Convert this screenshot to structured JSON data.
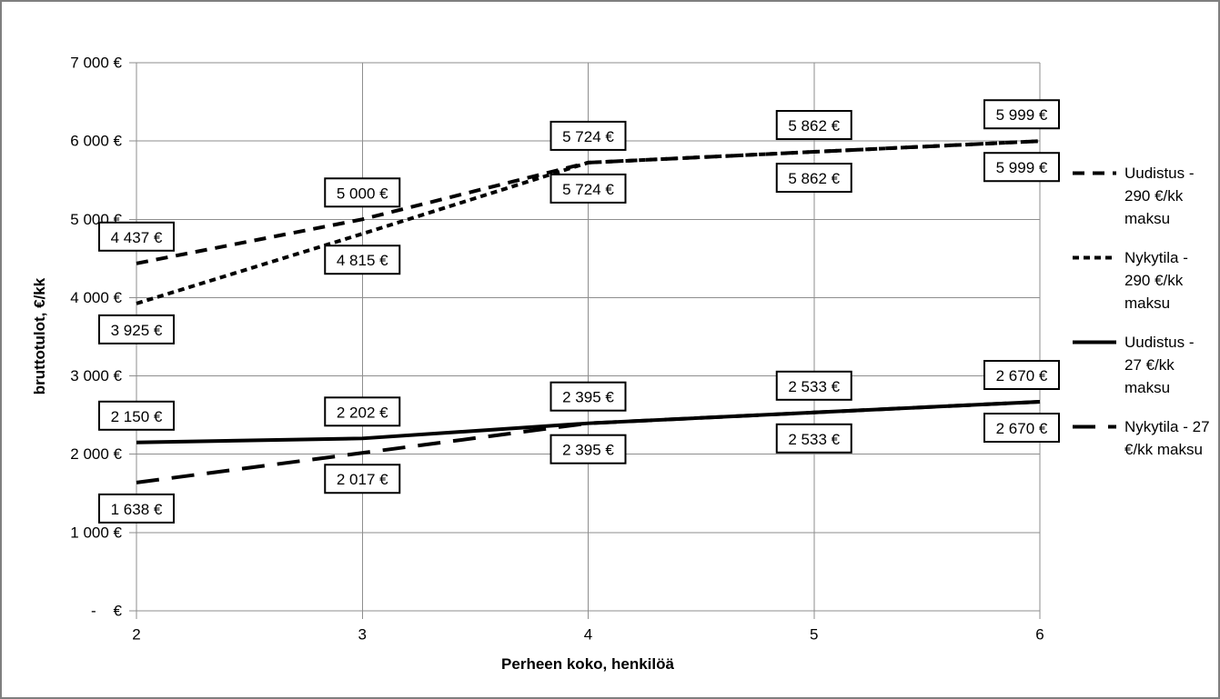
{
  "frame": {
    "background": "#ffffff",
    "border_color": "#7f7f7f"
  },
  "chart_data": {
    "type": "line",
    "xlabel": "Perheen koko, henkilöä",
    "ylabel": "bruttotulot, €/kk",
    "x": [
      2,
      3,
      4,
      5,
      6
    ],
    "xlim": [
      2,
      6
    ],
    "ylim": [
      0,
      7000
    ],
    "grid": true,
    "legend_position": "right",
    "yticks": [
      {
        "value": 7000,
        "label": "7 000 €"
      },
      {
        "value": 6000,
        "label": "6 000 €"
      },
      {
        "value": 5000,
        "label": "5 000 €"
      },
      {
        "value": 4000,
        "label": "4 000 €"
      },
      {
        "value": 3000,
        "label": "3 000 €"
      },
      {
        "value": 2000,
        "label": "2 000 €"
      },
      {
        "value": 1000,
        "label": "1 000 €"
      },
      {
        "value": 0,
        "label": "-    €"
      }
    ],
    "xticks": [
      {
        "value": 2,
        "label": "2"
      },
      {
        "value": 3,
        "label": "3"
      },
      {
        "value": 4,
        "label": "4"
      },
      {
        "value": 5,
        "label": "5"
      },
      {
        "value": 6,
        "label": "6"
      }
    ],
    "series": [
      {
        "name": "Uudistus - 290 €/kk maksu",
        "dash": "dashed-medium",
        "label_position": "above",
        "values": [
          4437,
          5000,
          5724,
          5862,
          5999
        ],
        "labels": [
          "4 437 €",
          "5 000 €",
          "5 724 €",
          "5 862 €",
          "5 999 €"
        ]
      },
      {
        "name": "Nykytila - 290 €/kk maksu",
        "dash": "dashed-short",
        "label_position": "below",
        "values": [
          3925,
          4815,
          5724,
          5862,
          5999
        ],
        "labels": [
          "3 925 €",
          "4 815 €",
          "5 724 €",
          "5 862 €",
          "5 999 €"
        ]
      },
      {
        "name": "Uudistus - 27 €/kk maksu",
        "dash": "solid",
        "label_position": "above",
        "values": [
          2150,
          2202,
          2395,
          2533,
          2670
        ],
        "labels": [
          "2 150 €",
          "2 202 €",
          "2 395 €",
          "2 533 €",
          "2 670 €"
        ]
      },
      {
        "name": "Nykytila - 27 €/kk maksu",
        "dash": "dashed-long",
        "label_position": "below",
        "values": [
          1638,
          2017,
          2395,
          2533,
          2670
        ],
        "labels": [
          "1 638 €",
          "2 017 €",
          "2 395 €",
          "2 533 €",
          "2 670 €"
        ]
      }
    ],
    "colors": {
      "line": "#000000",
      "gridline": "#8e8e8e",
      "label_box_bg": "#ffffff",
      "label_box_border": "#000000",
      "text": "#000000"
    }
  }
}
